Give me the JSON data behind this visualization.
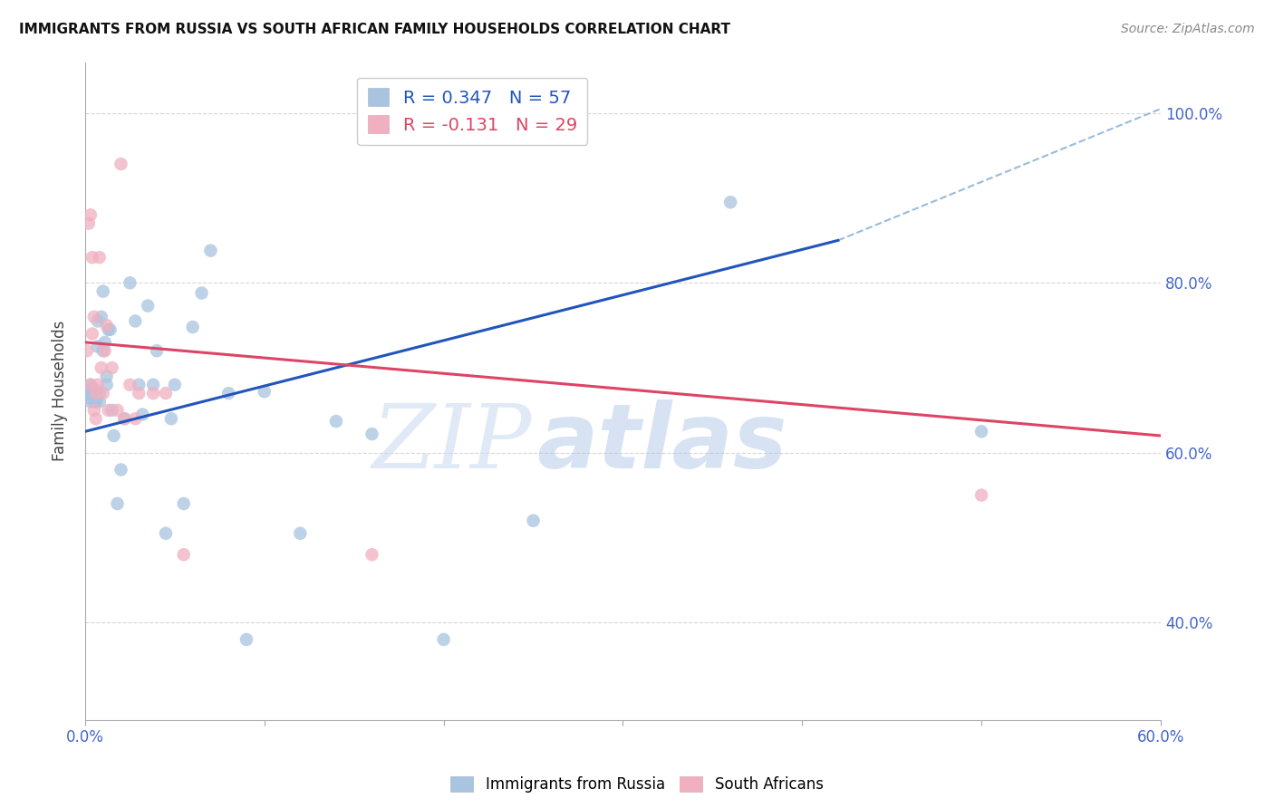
{
  "title": "IMMIGRANTS FROM RUSSIA VS SOUTH AFRICAN FAMILY HOUSEHOLDS CORRELATION CHART",
  "source": "Source: ZipAtlas.com",
  "ylabel": "Family Households",
  "legend_label1": "Immigrants from Russia",
  "legend_label2": "South Africans",
  "R1": 0.347,
  "N1": 57,
  "R2": -0.131,
  "N2": 29,
  "color_blue": "#a8c4e0",
  "color_pink": "#f0b0c0",
  "color_blue_line": "#2255bb",
  "color_pink_line": "#dd4466",
  "color_blue_dashed": "#99bbdd",
  "color_axis_labels": "#4466cc",
  "xlim": [
    0.0,
    0.6
  ],
  "ylim": [
    0.285,
    1.06
  ],
  "xtick_labels": [
    "0.0%",
    "",
    "",
    "",
    "",
    "",
    "60.0%"
  ],
  "xtick_values": [
    0.0,
    0.1,
    0.2,
    0.3,
    0.4,
    0.5,
    0.6
  ],
  "ytick_values": [
    0.4,
    0.6,
    0.8,
    1.0
  ],
  "ytick_labels": [
    "40.0%",
    "60.0%",
    "80.0%",
    "100.0%"
  ],
  "blue_x": [
    0.001,
    0.002,
    0.002,
    0.003,
    0.003,
    0.003,
    0.004,
    0.004,
    0.004,
    0.005,
    0.005,
    0.005,
    0.005,
    0.006,
    0.006,
    0.006,
    0.007,
    0.007,
    0.008,
    0.008,
    0.009,
    0.01,
    0.01,
    0.011,
    0.012,
    0.012,
    0.013,
    0.014,
    0.015,
    0.016,
    0.018,
    0.02,
    0.022,
    0.025,
    0.028,
    0.03,
    0.032,
    0.035,
    0.038,
    0.04,
    0.045,
    0.048,
    0.05,
    0.055,
    0.06,
    0.065,
    0.07,
    0.08,
    0.09,
    0.1,
    0.12,
    0.14,
    0.16,
    0.2,
    0.25,
    0.36,
    0.5
  ],
  "blue_y": [
    0.675,
    0.67,
    0.665,
    0.68,
    0.672,
    0.66,
    0.668,
    0.672,
    0.668,
    0.675,
    0.67,
    0.665,
    0.66,
    0.67,
    0.663,
    0.66,
    0.755,
    0.725,
    0.66,
    0.67,
    0.76,
    0.79,
    0.72,
    0.73,
    0.68,
    0.69,
    0.745,
    0.745,
    0.65,
    0.62,
    0.54,
    0.58,
    0.64,
    0.8,
    0.755,
    0.68,
    0.645,
    0.773,
    0.68,
    0.72,
    0.505,
    0.64,
    0.68,
    0.54,
    0.748,
    0.788,
    0.838,
    0.67,
    0.38,
    0.672,
    0.505,
    0.637,
    0.622,
    0.38,
    0.52,
    0.895,
    0.625
  ],
  "pink_x": [
    0.001,
    0.002,
    0.003,
    0.003,
    0.004,
    0.004,
    0.005,
    0.005,
    0.006,
    0.006,
    0.007,
    0.008,
    0.009,
    0.01,
    0.011,
    0.012,
    0.013,
    0.015,
    0.018,
    0.02,
    0.022,
    0.025,
    0.028,
    0.03,
    0.038,
    0.045,
    0.055,
    0.16,
    0.5
  ],
  "pink_y": [
    0.72,
    0.87,
    0.88,
    0.68,
    0.83,
    0.74,
    0.76,
    0.65,
    0.64,
    0.67,
    0.68,
    0.83,
    0.7,
    0.67,
    0.72,
    0.75,
    0.65,
    0.7,
    0.65,
    0.94,
    0.64,
    0.68,
    0.64,
    0.67,
    0.67,
    0.67,
    0.48,
    0.48,
    0.55
  ],
  "blue_line_x": [
    0.0,
    0.42
  ],
  "blue_line_y": [
    0.625,
    0.85
  ],
  "pink_line_x": [
    0.0,
    0.6
  ],
  "pink_line_y": [
    0.73,
    0.62
  ],
  "dashed_line_x": [
    0.42,
    0.6
  ],
  "dashed_line_y": [
    0.85,
    1.005
  ],
  "watermark_zip": "ZIP",
  "watermark_atlas": "atlas",
  "background_color": "#ffffff",
  "grid_color": "#cccccc"
}
